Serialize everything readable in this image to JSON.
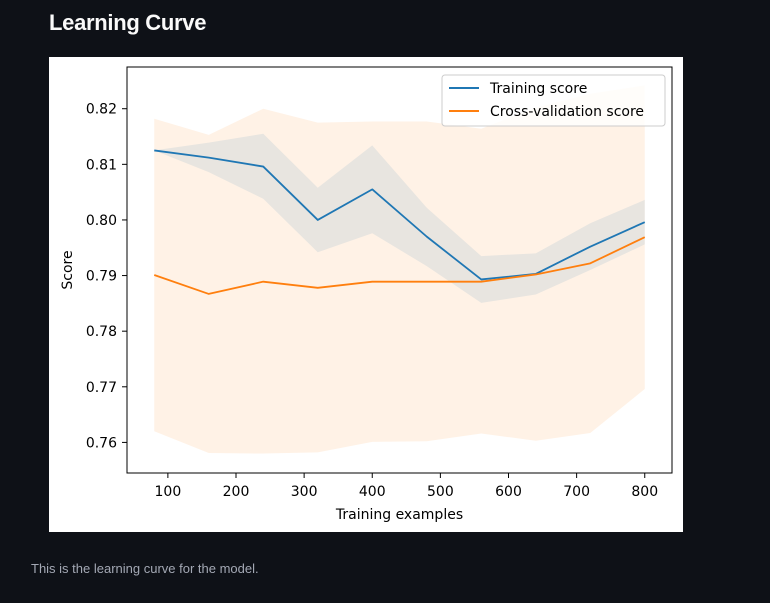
{
  "page": {
    "title": "Learning Curve",
    "caption": "This is the learning curve for the model."
  },
  "chart_data": {
    "type": "line",
    "xlabel": "Training examples",
    "ylabel": "Score",
    "xlim": [
      40,
      840
    ],
    "ylim": [
      0.7545,
      0.8275
    ],
    "xticks": [
      100,
      200,
      300,
      400,
      500,
      600,
      700,
      800
    ],
    "yticks": [
      0.76,
      0.77,
      0.78,
      0.79,
      0.8,
      0.81,
      0.82
    ],
    "ytick_labels": [
      "0.76",
      "0.77",
      "0.78",
      "0.79",
      "0.80",
      "0.81",
      "0.82"
    ],
    "grid": false,
    "legend_position": "top-right",
    "x": [
      80,
      160,
      240,
      320,
      400,
      480,
      560,
      640,
      720,
      800
    ],
    "series": [
      {
        "name": "Training score",
        "color": "#1f77b4",
        "values": [
          0.8125,
          0.8112,
          0.8096,
          0.8,
          0.8055,
          0.797,
          0.7893,
          0.7903,
          0.7952,
          0.7996
        ],
        "band_lower": [
          0.8125,
          0.8086,
          0.8038,
          0.7942,
          0.7976,
          0.7917,
          0.7851,
          0.7866,
          0.791,
          0.7956
        ],
        "band_upper": [
          0.8125,
          0.8139,
          0.8155,
          0.8058,
          0.8134,
          0.8022,
          0.7935,
          0.794,
          0.7994,
          0.8036
        ],
        "band_color": "#1f77b4"
      },
      {
        "name": "Cross-validation score",
        "color": "#ff7f0e",
        "values": [
          0.7901,
          0.7867,
          0.7889,
          0.7878,
          0.7889,
          0.7889,
          0.7889,
          0.7902,
          0.7922,
          0.7969
        ],
        "band_lower": [
          0.762,
          0.7581,
          0.758,
          0.7582,
          0.7601,
          0.7602,
          0.7616,
          0.7603,
          0.7617,
          0.7696
        ],
        "band_upper": [
          0.8182,
          0.8153,
          0.82,
          0.8175,
          0.8177,
          0.8177,
          0.8164,
          0.8202,
          0.8227,
          0.8242
        ],
        "band_color": "#ff7f0e"
      }
    ]
  }
}
